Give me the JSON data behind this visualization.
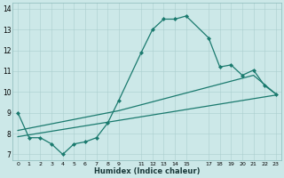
{
  "xlabel": "Humidex (Indice chaleur)",
  "background_color": "#cce8e8",
  "line_color": "#1a7a6e",
  "xlim": [
    -0.5,
    23.5
  ],
  "ylim": [
    6.7,
    14.3
  ],
  "yticks": [
    7,
    8,
    9,
    10,
    11,
    12,
    13,
    14
  ],
  "xticks": [
    0,
    1,
    2,
    3,
    4,
    5,
    6,
    7,
    8,
    9,
    11,
    12,
    13,
    14,
    15,
    17,
    18,
    19,
    20,
    21,
    22,
    23
  ],
  "xtick_labels": [
    "0",
    "1",
    "2",
    "3",
    "4",
    "5",
    "6",
    "7",
    "8",
    "9",
    "11",
    "12",
    "13",
    "14",
    "15",
    "17",
    "18",
    "19",
    "20",
    "21",
    "22",
    "23"
  ],
  "series": [
    {
      "x": [
        0,
        1,
        2,
        3,
        4,
        5,
        6,
        7,
        8,
        9,
        11,
        12,
        13,
        14,
        15,
        17,
        18,
        19,
        20,
        21,
        22,
        23
      ],
      "y": [
        9.0,
        7.8,
        7.8,
        7.5,
        7.0,
        7.5,
        7.6,
        7.8,
        8.5,
        9.6,
        11.9,
        13.0,
        13.5,
        13.5,
        13.65,
        12.6,
        11.2,
        11.3,
        10.8,
        11.05,
        10.3,
        9.9
      ]
    },
    {
      "x": [
        0,
        9,
        21,
        23
      ],
      "y": [
        8.15,
        9.1,
        10.8,
        9.9
      ]
    },
    {
      "x": [
        0,
        23
      ],
      "y": [
        7.85,
        9.85
      ]
    }
  ]
}
